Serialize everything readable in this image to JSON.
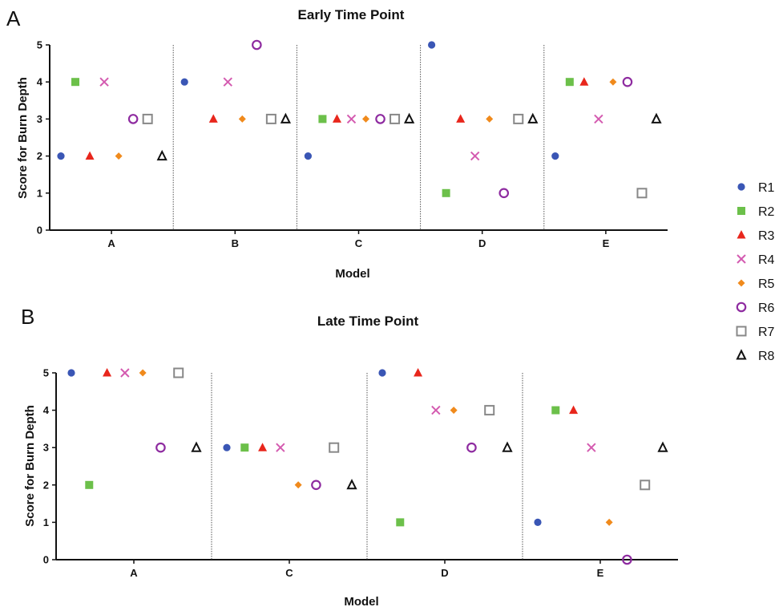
{
  "chart_data": [
    {
      "panel_label": "A",
      "type": "scatter",
      "title": "Early Time Point",
      "xlabel": "Model",
      "ylabel": "Score for Burn Depth",
      "ylim": [
        0,
        5
      ],
      "yticks": [
        "0",
        "1",
        "2",
        "3",
        "4",
        "5"
      ],
      "categories": [
        "A",
        "B",
        "C",
        "D",
        "E"
      ],
      "series": [
        {
          "name": "R1",
          "values": [
            2,
            4,
            2,
            5,
            2
          ]
        },
        {
          "name": "R2",
          "values": [
            4,
            null,
            3,
            1,
            4
          ]
        },
        {
          "name": "R3",
          "values": [
            2,
            3,
            3,
            3,
            4
          ]
        },
        {
          "name": "R4",
          "values": [
            4,
            4,
            3,
            2,
            3
          ]
        },
        {
          "name": "R5",
          "values": [
            2,
            3,
            3,
            3,
            4
          ]
        },
        {
          "name": "R6",
          "values": [
            3,
            5,
            3,
            1,
            4
          ]
        },
        {
          "name": "R7",
          "values": [
            3,
            3,
            3,
            3,
            1
          ]
        },
        {
          "name": "R8",
          "values": [
            2,
            3,
            3,
            3,
            3
          ]
        }
      ]
    },
    {
      "panel_label": "B",
      "type": "scatter",
      "title": "Late Time Point",
      "xlabel": "Model",
      "ylabel": "Score for Burn Depth",
      "ylim": [
        0,
        5
      ],
      "yticks": [
        "0",
        "1",
        "2",
        "3",
        "4",
        "5"
      ],
      "categories": [
        "A",
        "C",
        "D",
        "E"
      ],
      "series": [
        {
          "name": "R1",
          "values": [
            5,
            3,
            5,
            1
          ]
        },
        {
          "name": "R2",
          "values": [
            2,
            3,
            1,
            4
          ]
        },
        {
          "name": "R3",
          "values": [
            5,
            3,
            5,
            4
          ]
        },
        {
          "name": "R4",
          "values": [
            5,
            3,
            4,
            3
          ]
        },
        {
          "name": "R5",
          "values": [
            5,
            2,
            4,
            1
          ]
        },
        {
          "name": "R6",
          "values": [
            3,
            2,
            3,
            0
          ]
        },
        {
          "name": "R7",
          "values": [
            5,
            3,
            4,
            2
          ]
        },
        {
          "name": "R8",
          "values": [
            3,
            2,
            3,
            3
          ]
        }
      ]
    }
  ],
  "legend": {
    "placement": "right",
    "items": [
      {
        "label": "R1",
        "marker": "circle-filled",
        "color": "#3A56B5"
      },
      {
        "label": "R2",
        "marker": "square-filled",
        "color": "#6CC04A"
      },
      {
        "label": "R3",
        "marker": "triangle-filled",
        "color": "#E8261C"
      },
      {
        "label": "R4",
        "marker": "x-cross",
        "color": "#D45BB0"
      },
      {
        "label": "R5",
        "marker": "diamond-filled",
        "color": "#F08A1C"
      },
      {
        "label": "R6",
        "marker": "circle-open",
        "color": "#8E2BA0"
      },
      {
        "label": "R7",
        "marker": "square-open",
        "color": "#888888"
      },
      {
        "label": "R8",
        "marker": "triangle-open",
        "color": "#111111"
      }
    ]
  }
}
